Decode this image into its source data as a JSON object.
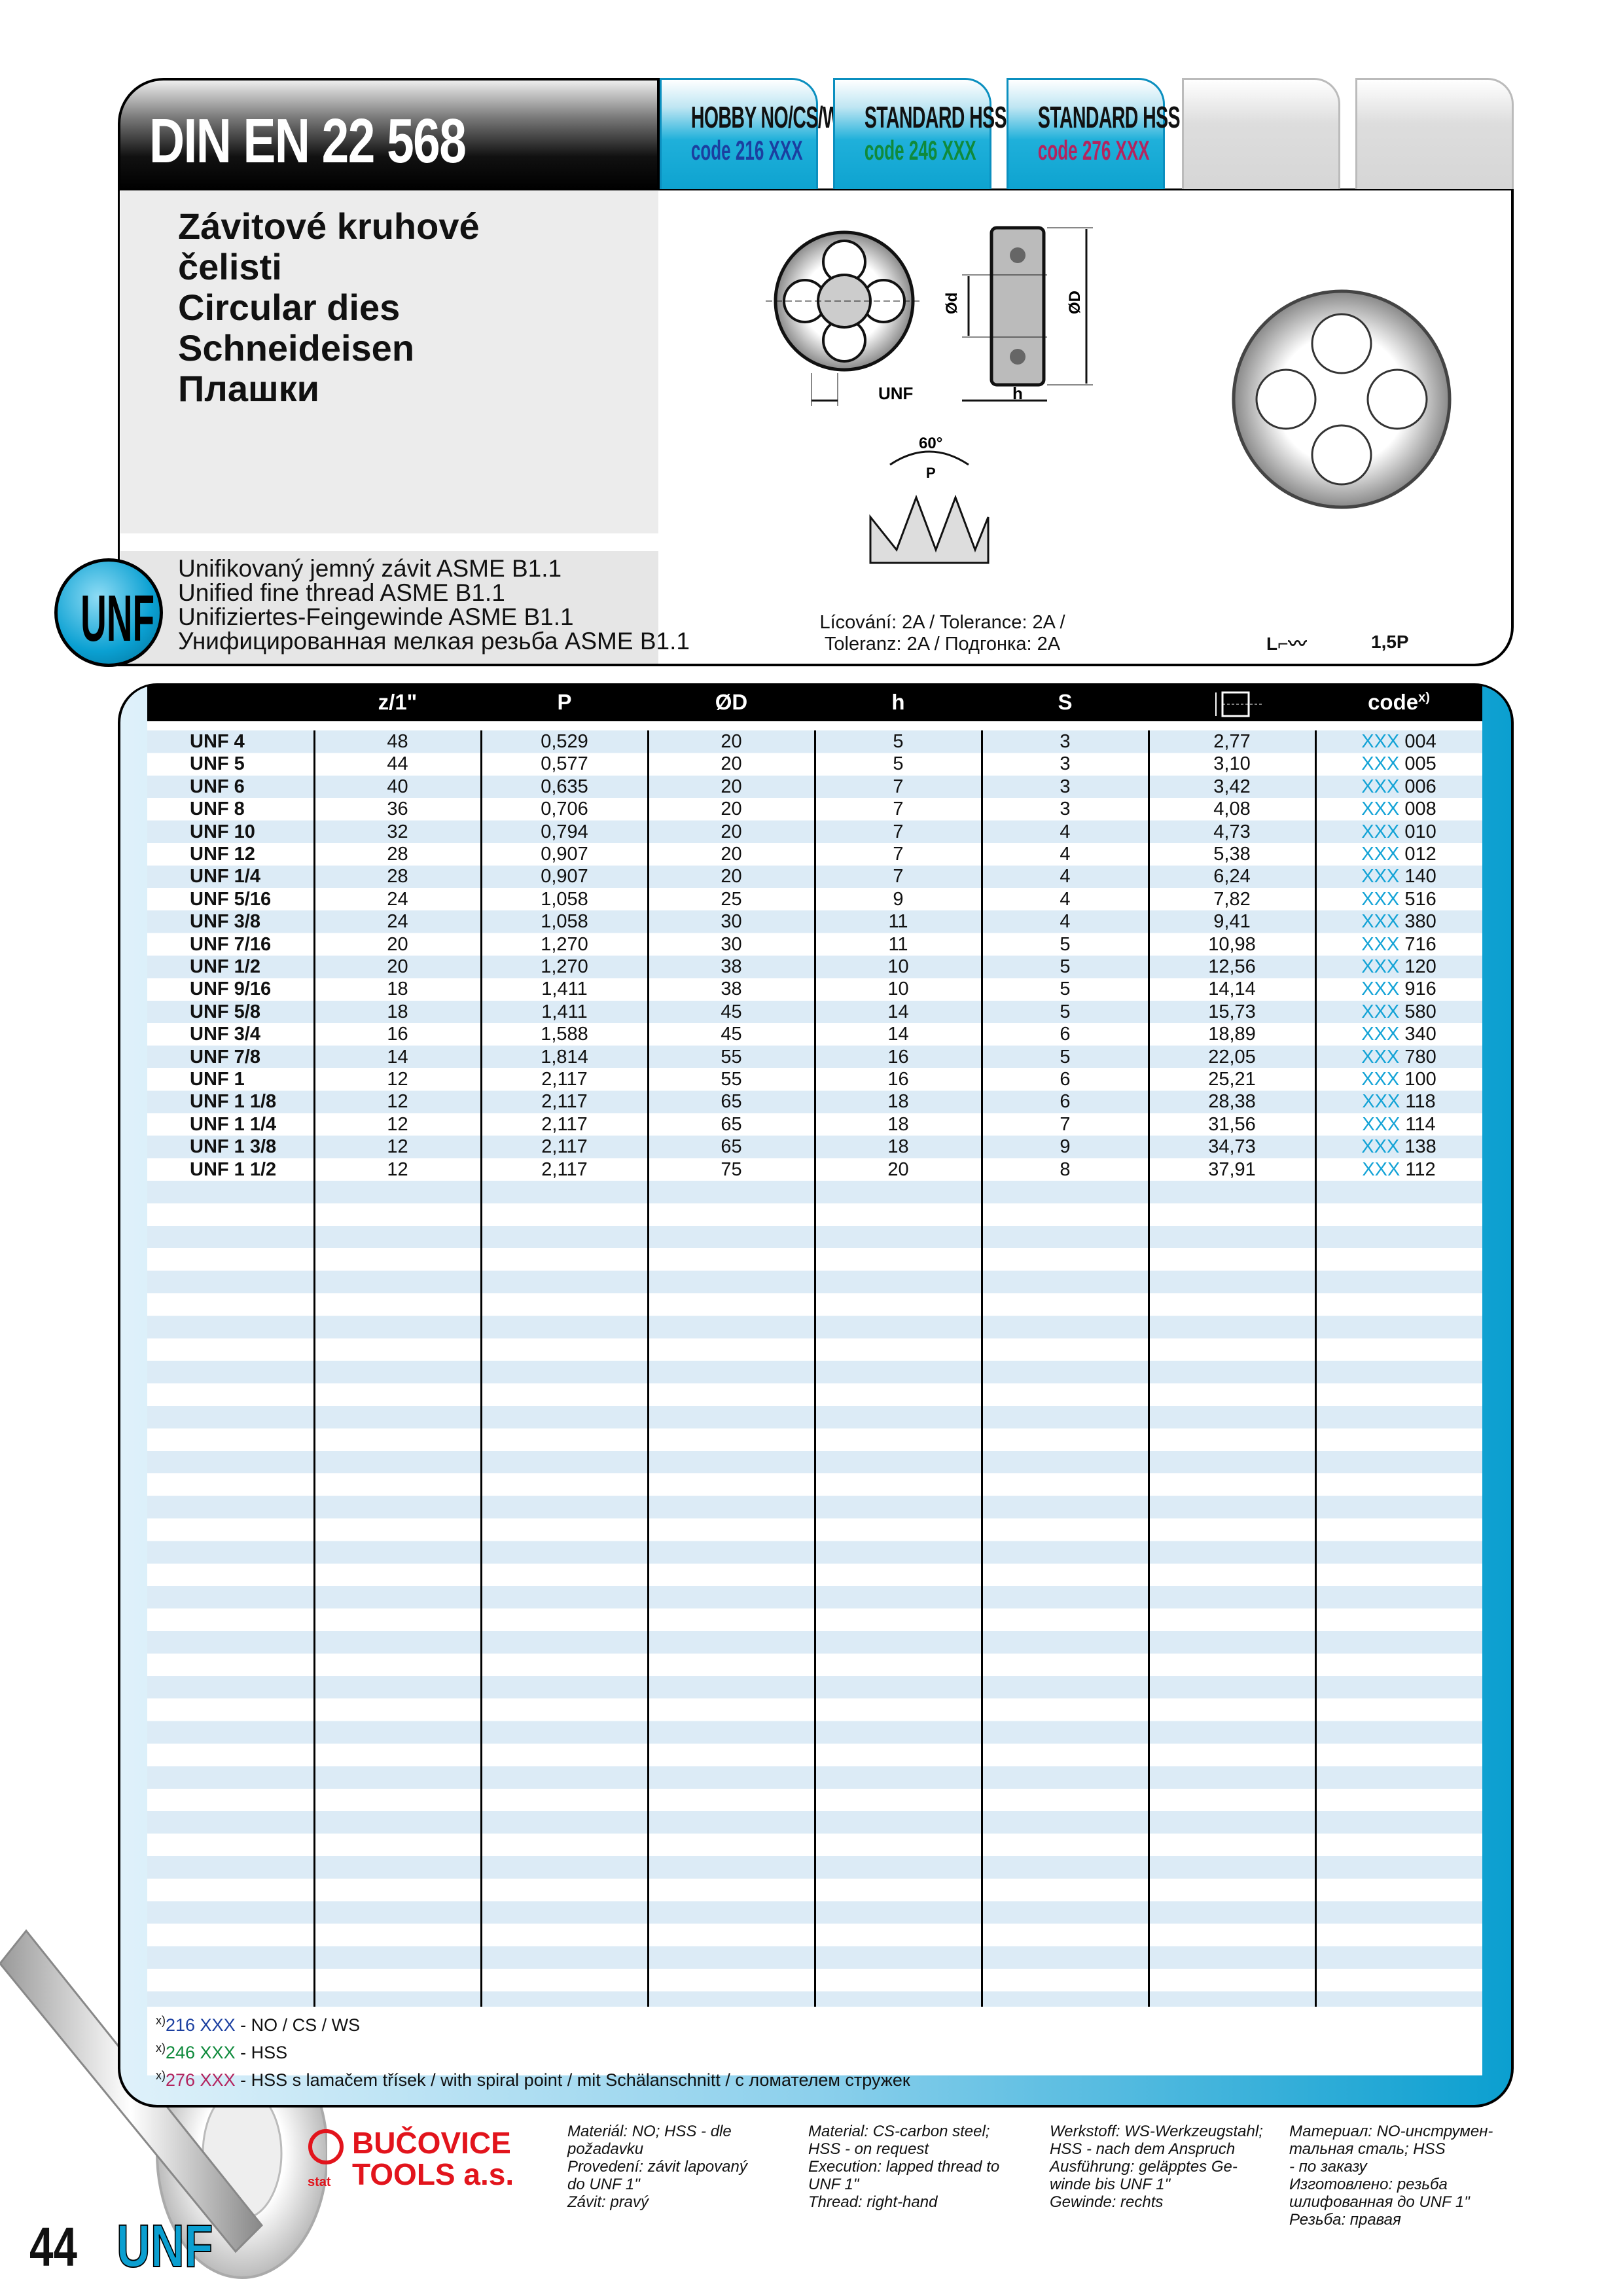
{
  "header": {
    "title": "DIN EN 22 568",
    "tabs": [
      {
        "line1": "HOBBY NO/CS/WS",
        "line2": "code 216 XXX",
        "color": "#1b3fa0"
      },
      {
        "line1": "STANDARD HSS",
        "line2": "code 246 XXX",
        "color": "#0f8a3c"
      },
      {
        "line1": "STANDARD HSS",
        "line2": "code 276 XXX",
        "color": "#b3245e"
      },
      {
        "line1": "",
        "line2": ""
      },
      {
        "line1": "",
        "line2": ""
      }
    ]
  },
  "product": {
    "names": [
      "Závitové kruhové",
      "čelisti",
      "Circular dies",
      "Schneideisen",
      "Плашки"
    ],
    "thread": [
      "Unifikovaný jemný závit ASME B1.1",
      "Unified fine thread ASME B1.1",
      "Unifiziertes-Feingewinde ASME B1.1",
      "Унифицированная мелкая резьба ASME B1.1"
    ],
    "badge": "UNF",
    "diagram_labels": {
      "unf": "UNF",
      "h": "h",
      "d": "Ød",
      "D": "ØD",
      "angle": "60°",
      "p": "P",
      "l": "L"
    },
    "tolerance": [
      "Lícování: 2A / Tolerance: 2A /",
      "Toleranz: 2A / Подгонка: 2A"
    ],
    "chamfer": "1,5P"
  },
  "table": {
    "columns": [
      "",
      "z/1\"",
      "P",
      "ØD",
      "h",
      "S",
      "",
      "code"
    ],
    "code_sup": "x)",
    "rows": [
      [
        "UNF 4",
        "48",
        "0,529",
        "20",
        "5",
        "3",
        "2,77",
        "004"
      ],
      [
        "UNF 5",
        "44",
        "0,577",
        "20",
        "5",
        "3",
        "3,10",
        "005"
      ],
      [
        "UNF 6",
        "40",
        "0,635",
        "20",
        "7",
        "3",
        "3,42",
        "006"
      ],
      [
        "UNF 8",
        "36",
        "0,706",
        "20",
        "7",
        "3",
        "4,08",
        "008"
      ],
      [
        "UNF 10",
        "32",
        "0,794",
        "20",
        "7",
        "4",
        "4,73",
        "010"
      ],
      [
        "UNF 12",
        "28",
        "0,907",
        "20",
        "7",
        "4",
        "5,38",
        "012"
      ],
      [
        "UNF 1/4",
        "28",
        "0,907",
        "20",
        "7",
        "4",
        "6,24",
        "140"
      ],
      [
        "UNF 5/16",
        "24",
        "1,058",
        "25",
        "9",
        "4",
        "7,82",
        "516"
      ],
      [
        "UNF 3/8",
        "24",
        "1,058",
        "30",
        "11",
        "4",
        "9,41",
        "380"
      ],
      [
        "UNF 7/16",
        "20",
        "1,270",
        "30",
        "11",
        "5",
        "10,98",
        "716"
      ],
      [
        "UNF 1/2",
        "20",
        "1,270",
        "38",
        "10",
        "5",
        "12,56",
        "120"
      ],
      [
        "UNF 9/16",
        "18",
        "1,411",
        "38",
        "10",
        "5",
        "14,14",
        "916"
      ],
      [
        "UNF 5/8",
        "18",
        "1,411",
        "45",
        "14",
        "5",
        "15,73",
        "580"
      ],
      [
        "UNF 3/4",
        "16",
        "1,588",
        "45",
        "14",
        "6",
        "18,89",
        "340"
      ],
      [
        "UNF 7/8",
        "14",
        "1,814",
        "55",
        "16",
        "5",
        "22,05",
        "780"
      ],
      [
        "UNF 1",
        "12",
        "2,117",
        "55",
        "16",
        "6",
        "25,21",
        "100"
      ],
      [
        "UNF 1 1/8",
        "12",
        "2,117",
        "65",
        "18",
        "6",
        "28,38",
        "118"
      ],
      [
        "UNF 1 1/4",
        "12",
        "2,117",
        "65",
        "18",
        "7",
        "31,56",
        "114"
      ],
      [
        "UNF 1 3/8",
        "12",
        "2,117",
        "65",
        "18",
        "9",
        "34,73",
        "138"
      ],
      [
        "UNF 1 1/2",
        "12",
        "2,117",
        "75",
        "20",
        "8",
        "37,91",
        "112"
      ]
    ],
    "code_prefix": "XXX"
  },
  "notes": [
    {
      "mark": "x)",
      "code": "216 XXX",
      "text": " - NO / CS / WS",
      "color": "#1b3fa0"
    },
    {
      "mark": "x)",
      "code": "246 XXX",
      "text": " - HSS",
      "color": "#0f8a3c"
    },
    {
      "mark": "x)",
      "code": "276 XXX",
      "text": " - HSS s lamačem třísek / with spiral point / mit Schälanschnitt / с ломателем стружек",
      "color": "#b3245e"
    }
  ],
  "footer": {
    "logo": [
      "BUČOVICE",
      "TOOLS a.s."
    ],
    "logo_color": "#e2141c",
    "cols": [
      [
        "Materiál: NO; HSS - dle",
        "požadavku",
        "Provedení: závit lapovaný",
        "do UNF 1\"",
        "Závit: pravý"
      ],
      [
        "Material: CS-carbon steel;",
        "HSS - on request",
        "Execution: lapped thread to",
        "UNF 1\"",
        "Thread: right-hand"
      ],
      [
        "Werkstoff: WS-Werkzeugstahl;",
        "HSS - nach dem Anspruch",
        "Ausführung: geläpptes Ge-",
        "winde bis UNF 1\"",
        "Gewinde: rechts"
      ],
      [
        "Материал: NO-инструмен-",
        "тальная сталь; HSS",
        "- по заказу",
        "Изготовлено: резьба",
        "шлифованная до UNF 1\"",
        "Резьба: правая"
      ]
    ],
    "page_number": "44",
    "section": "UNF"
  }
}
